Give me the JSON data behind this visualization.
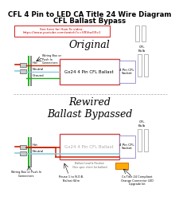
{
  "title1": "CFL 4 Pin to LED CA Title 24 Wire Diagram",
  "title2": "CFL Ballast Bypass",
  "bg_color": "#ffffff",
  "link_text": "See here for How To video:\nhttps://www.youtube.com/watch?v=V8ViwG9v1",
  "link_color": "#cc0000",
  "section1_title": "Original",
  "section2_title": "Rewired\nBallast Bypassed",
  "ballast_label": "Gx24 4 Pin CFL Ballast",
  "ballast_border": "#cc4444",
  "socket_label": "4 Pin CFL\nSocket",
  "socket_border": "#8888cc",
  "cfl_label": "CFL\nBulb",
  "wiring_label": "Wiring Box or\nPush In\nConnectors",
  "rewired_wiring_label": "Wiring Box or Push In\nConnectors",
  "reuse_wire_label": "Reuse 1 to N.O.B.\nBallast Wire",
  "ca_kit_label": "Ca Title 24 Compliant\nOrange Connector LED\nUpgrade kit",
  "hot_label": "Hot",
  "neutral_label": "Neutral",
  "ground_label": "Ground",
  "hot_color": "#cc2200",
  "neutral_color": "#88ccdd",
  "ground_color": "#22aa22",
  "wire_red": "#cc2200",
  "wire_darkred": "#aa1100",
  "wire_blue": "#3344cc",
  "wire_lightblue": "#4488cc",
  "section_divider_color": "#aaaaaa",
  "green_bar_color": "#22bb22",
  "gray_bar_color": "#888888",
  "connector_fill": "#cccccc",
  "connector_edge": "#555555",
  "orange_fill": "#ffaa00",
  "orange_edge": "#cc6600"
}
